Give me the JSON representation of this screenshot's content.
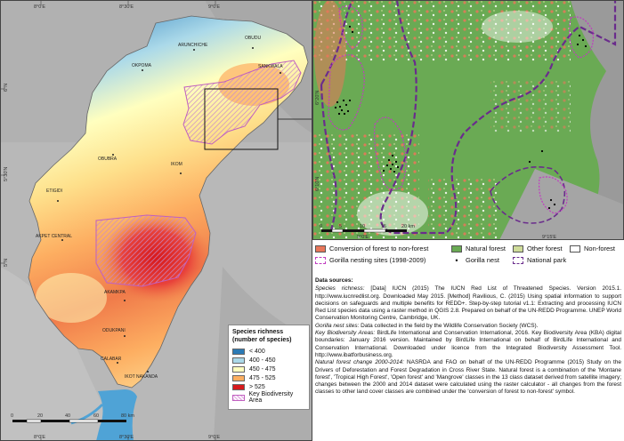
{
  "left_map": {
    "top_ticks": [
      "8°0'E",
      "8°30'E",
      "9°0'E"
    ],
    "bottom_ticks": [
      "8°0'E",
      "8°30'E",
      "9°0'E"
    ],
    "left_ticks": [
      "6°N",
      "5°30'N",
      "5°N"
    ],
    "places": [
      "ARUNCHICHE",
      "OKPOMA",
      "OBUDU",
      "SANKWALA",
      "OBUBRA",
      "IKOM",
      "ETIGIDI",
      "AKPET CENTRAL",
      "AKAMKPA",
      "ODUKPANI",
      "CALABAR",
      "IKOT NAKANDA"
    ],
    "scale_labels": [
      "0",
      "20",
      "40",
      "60",
      "80 km"
    ]
  },
  "richness_legend": {
    "title_line1": "Species richness",
    "title_line2": "(number of species)",
    "classes": [
      {
        "label": "< 400",
        "color": "#2c7bb6"
      },
      {
        "label": "400 - 450",
        "color": "#abd9e9"
      },
      {
        "label": "450 - 475",
        "color": "#ffffbf"
      },
      {
        "label": "475 - 525",
        "color": "#fdae61"
      },
      {
        "label": "> 525",
        "color": "#d7191c"
      }
    ],
    "kba_label": "Key Biodiversity Area",
    "kba_color": "#d98cd9"
  },
  "inset_map": {
    "left_ticks": [
      "6°20'N",
      "6°10'N"
    ],
    "bottom_ticks": [
      "9°0'E",
      "9°15'E"
    ],
    "scale_labels": [
      "0",
      "5",
      "10",
      "15",
      "20 km"
    ]
  },
  "inset_legend": {
    "items": [
      {
        "label": "Conversion of forest to non-forest",
        "color": "#e8765a"
      },
      {
        "label": "Natural forest",
        "color": "#6aaa54"
      },
      {
        "label": "Other forest",
        "color": "#cfdc9a"
      },
      {
        "label": "Non-forest",
        "color": "#ffffff"
      }
    ],
    "gorilla_sites_label": "Gorilla nesting sites (1998-2009)",
    "gorilla_nest_label": "Gorilla nest",
    "national_park_label": "National park"
  },
  "data_sources": {
    "heading": "Data sources:",
    "species_label": "Species richness:",
    "species_text": " [Data] IUCN (2015) The IUCN Red List of Threatened Species. Version 2015.1. http://www.iucnredlist.org. Downloaded May 2015. [Method] Ravilious, C. (2015) Using spatial information to support decisions on safeguards and multiple benefits for REDD+. Step-by-step tutorial v1.1: Extracting and processing IUCN Red List species data using a raster method in QGIS 2.8. Prepared on behalf of the UN-REDD Programme. UNEP World Conservation Monitoring Centre, Cambridge, UK.",
    "gorilla_label": "Gorilla nest sites:",
    "gorilla_text": " Data collected in the field by the Wildlife Conservation Society (WCS).",
    "kba_label": "Key Biodiversity Areas:",
    "kba_text": " BirdLife International and Conservation International, 2016. Key Biodiversity Area (KBA) digital boundaries: January 2016 version. Maintained by BirdLife International on behalf of BirdLife International and Conservation International. Downloaded under licence from the Integrated Biodiversity Assessment Tool. http://www.ibatforbusiness.org.",
    "forest_label": "Natural forest change 2000-2014:",
    "forest_text": " NASRDA and FAO on behalf of the UN-REDD Programme (2015) Study on the Drivers of Deforestation and Forest Degradation in Cross River State. Natural forest is a combination of the 'Montane forest', 'Tropical High Forest', 'Open forest' and 'Mangrove' classes in the 13 class dataset derived from satellite imagery; changes between the 2000 and 2014 dataset were calculated using the raster calculator - all changes from the forest classes to other land cover classes are combined under the 'conversion of forest to non-forest' symbol."
  }
}
